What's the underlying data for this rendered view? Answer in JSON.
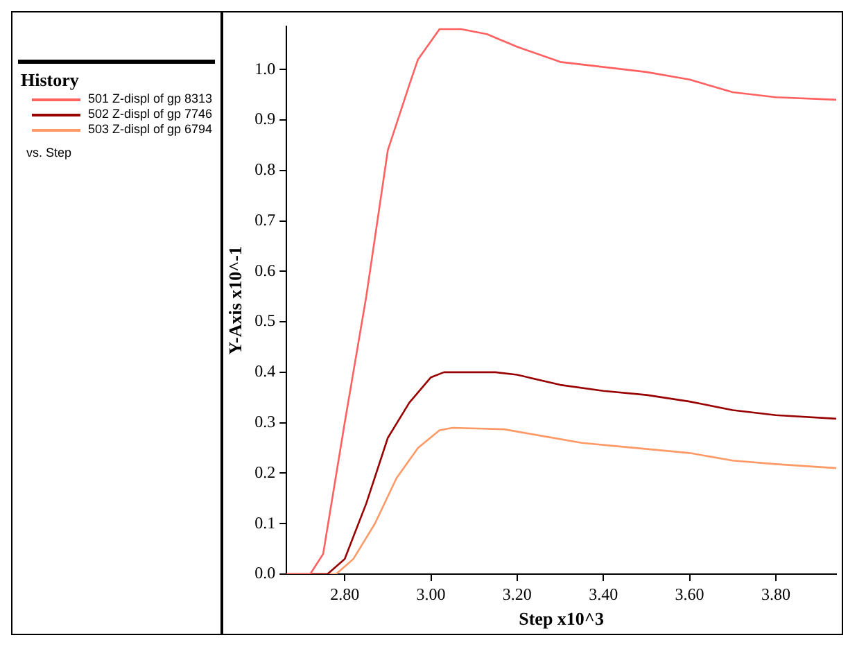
{
  "chart_data": {
    "type": "line",
    "xlabel": "Step x10^3",
    "ylabel": "Y-Axis x10^-1",
    "legend_title": "History",
    "legend": "left",
    "grid": false,
    "marker": "none",
    "line_style": "solid",
    "annotations": [
      "vs. Step"
    ],
    "xlim": [
      2.665,
      3.94
    ],
    "xticks": [
      {
        "value": 2.8,
        "label": "2.80"
      },
      {
        "value": 3.0,
        "label": "3.00"
      },
      {
        "value": 3.2,
        "label": "3.20"
      },
      {
        "value": 3.4,
        "label": "3.40"
      },
      {
        "value": 3.6,
        "label": "3.60"
      },
      {
        "value": 3.8,
        "label": "3.80"
      }
    ],
    "ylim": [
      0,
      1.085
    ],
    "yticks": [
      {
        "value": 0,
        "label": "0.0"
      },
      {
        "value": 0.1,
        "label": "0.1"
      },
      {
        "value": 0.2,
        "label": "0.2"
      },
      {
        "value": 0.3,
        "label": "0.3"
      },
      {
        "value": 0.4,
        "label": "0.4"
      },
      {
        "value": 0.5,
        "label": "0.5"
      },
      {
        "value": 0.6,
        "label": "0.6"
      },
      {
        "value": 0.7,
        "label": "0.7"
      },
      {
        "value": 0.8,
        "label": "0.8"
      },
      {
        "value": 0.9,
        "label": "0.9"
      },
      {
        "value": 1.0,
        "label": "1.0"
      }
    ],
    "series": [
      {
        "name": "501 Z-displ of gp 8313",
        "color": "#ff6060",
        "x": [
          2.665,
          2.72,
          2.75,
          2.8,
          2.85,
          2.9,
          2.95,
          2.97,
          3.02,
          3.07,
          3.13,
          3.2,
          3.3,
          3.4,
          3.5,
          3.6,
          3.7,
          3.8,
          3.94
        ],
        "values": [
          0,
          0,
          0.04,
          0.3,
          0.55,
          0.84,
          0.97,
          1.02,
          1.08,
          1.08,
          1.07,
          1.045,
          1.015,
          1.005,
          0.995,
          0.98,
          0.955,
          0.945,
          0.94
        ]
      },
      {
        "name": "502 Z-displ of gp 7746",
        "color": "#990000",
        "x": [
          2.665,
          2.76,
          2.8,
          2.85,
          2.9,
          2.95,
          3.0,
          3.03,
          3.15,
          3.2,
          3.3,
          3.4,
          3.5,
          3.6,
          3.7,
          3.8,
          3.94
        ],
        "values": [
          0,
          0,
          0.03,
          0.14,
          0.27,
          0.34,
          0.39,
          0.4,
          0.4,
          0.395,
          0.375,
          0.363,
          0.355,
          0.342,
          0.325,
          0.315,
          0.308
        ]
      },
      {
        "name": "503 Z-displ of gp 6794",
        "color": "#ff9966",
        "x": [
          2.665,
          2.78,
          2.82,
          2.87,
          2.92,
          2.97,
          3.02,
          3.05,
          3.17,
          3.25,
          3.35,
          3.45,
          3.6,
          3.7,
          3.8,
          3.94
        ],
        "values": [
          0,
          0,
          0.03,
          0.1,
          0.19,
          0.25,
          0.285,
          0.29,
          0.287,
          0.275,
          0.26,
          0.252,
          0.24,
          0.225,
          0.218,
          0.21
        ]
      }
    ]
  }
}
